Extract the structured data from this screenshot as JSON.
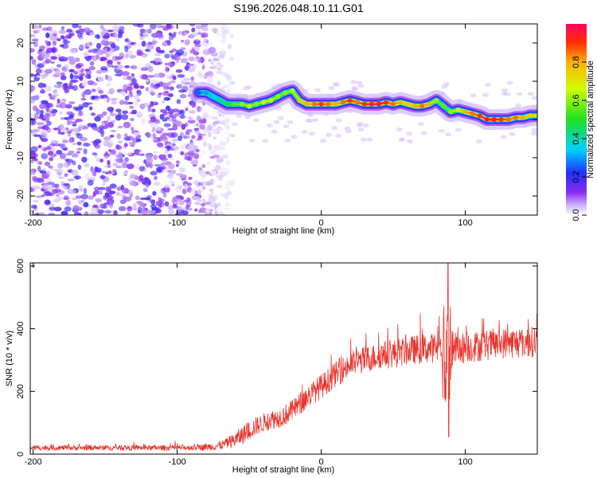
{
  "title": "S196.2026.048.10.11.G01",
  "chart_data": [
    {
      "type": "heatmap",
      "title": "S196.2026.048.10.11.G01",
      "xlabel": "Height of straight line (km)",
      "ylabel": "Frequency (Hz)",
      "xlim": [
        -202,
        150
      ],
      "ylim": [
        -25,
        25
      ],
      "xticks": [
        -200,
        -100,
        0,
        100
      ],
      "xtick_labels": [
        "-200",
        "-100",
        "0",
        "100"
      ],
      "yticks": [
        -20,
        -10,
        0,
        10,
        20
      ],
      "ytick_labels": [
        "-20",
        "-10",
        "0",
        "10",
        "20"
      ],
      "colorbar": {
        "label": "Normalized spectral amplitude",
        "range": [
          0,
          1
        ],
        "ticks": [
          0,
          0.2,
          0.4,
          0.6,
          0.8
        ],
        "tick_labels": [
          "0.0",
          "0.2",
          "0.4",
          "0.6",
          "0.8"
        ]
      },
      "ridge": {
        "x": [
          -85,
          -80,
          -75,
          -70,
          -65,
          -60,
          -55,
          -50,
          -45,
          -40,
          -35,
          -30,
          -25,
          -20,
          -15,
          -10,
          -5,
          0,
          5,
          10,
          15,
          20,
          25,
          30,
          35,
          40,
          45,
          50,
          55,
          60,
          65,
          70,
          75,
          80,
          85,
          90,
          95,
          100,
          105,
          110,
          115,
          120,
          125,
          130,
          135,
          140,
          145,
          150
        ],
        "freq": [
          7,
          7,
          6,
          5,
          4,
          4,
          4,
          3.5,
          4,
          4.5,
          5,
          6,
          7,
          7.5,
          5,
          4,
          4,
          4,
          4,
          4,
          4.5,
          5,
          4.5,
          4,
          4,
          4,
          4.5,
          4,
          4.5,
          4,
          3.5,
          3.5,
          4,
          5,
          3.5,
          2,
          2.5,
          2,
          1.5,
          1,
          0,
          0,
          0,
          0,
          0.5,
          0.5,
          1,
          1
        ],
        "amplitude": [
          0.25,
          0.3,
          0.35,
          0.4,
          0.5,
          0.55,
          0.6,
          0.65,
          0.6,
          0.65,
          0.7,
          0.6,
          0.6,
          0.65,
          0.75,
          0.8,
          0.85,
          0.9,
          0.85,
          0.8,
          0.85,
          0.9,
          0.85,
          0.9,
          0.95,
          0.95,
          0.9,
          0.85,
          0.8,
          0.75,
          0.8,
          0.85,
          0.8,
          0.6,
          0.55,
          0.6,
          0.7,
          0.8,
          0.85,
          0.9,
          0.95,
          0.95,
          0.9,
          0.85,
          0.85,
          0.8,
          0.75,
          0.7
        ]
      },
      "noise_region": {
        "x_from": -202,
        "x_to": -62,
        "freq_from": -25,
        "freq_to": 25,
        "amplitude": [
          0.02,
          0.2
        ]
      }
    },
    {
      "type": "line",
      "xlabel": "Height of straight line (km)",
      "ylabel": "SNR (10 * v/v)",
      "xlim": [
        -202,
        150
      ],
      "ylim": [
        0,
        610
      ],
      "xticks": [
        -200,
        -100,
        0,
        100
      ],
      "xtick_labels": [
        "-200",
        "-100",
        "0",
        "100"
      ],
      "yticks": [
        0,
        200,
        400,
        600
      ],
      "ytick_labels": [
        "0",
        "200",
        "400",
        "600"
      ],
      "series": [
        {
          "name": "SNR",
          "color": "#e8352e",
          "x": [
            -202,
            -180,
            -160,
            -140,
            -120,
            -100,
            -85,
            -75,
            -70,
            -65,
            -60,
            -55,
            -50,
            -45,
            -40,
            -35,
            -30,
            -25,
            -20,
            -15,
            -10,
            -5,
            0,
            5,
            10,
            15,
            20,
            25,
            30,
            40,
            50,
            60,
            70,
            80,
            85,
            88,
            92,
            100,
            110,
            120,
            130,
            140,
            150
          ],
          "mean": [
            20,
            20,
            20,
            20,
            20,
            20,
            22,
            24,
            28,
            35,
            45,
            60,
            75,
            90,
            100,
            110,
            115,
            125,
            140,
            160,
            180,
            200,
            215,
            235,
            255,
            270,
            285,
            295,
            300,
            315,
            320,
            330,
            335,
            340,
            330,
            320,
            330,
            340,
            345,
            350,
            355,
            355,
            360
          ],
          "noise": [
            8,
            8,
            8,
            8,
            8,
            9,
            10,
            12,
            14,
            18,
            24,
            30,
            30,
            30,
            30,
            32,
            32,
            34,
            34,
            36,
            38,
            38,
            40,
            40,
            40,
            42,
            42,
            42,
            44,
            44,
            46,
            46,
            48,
            48,
            60,
            60,
            60,
            50,
            50,
            50,
            50,
            50,
            50
          ]
        }
      ],
      "annotations": {
        "spike": {
          "x": 88,
          "max": 610,
          "min": 55
        }
      }
    }
  ]
}
